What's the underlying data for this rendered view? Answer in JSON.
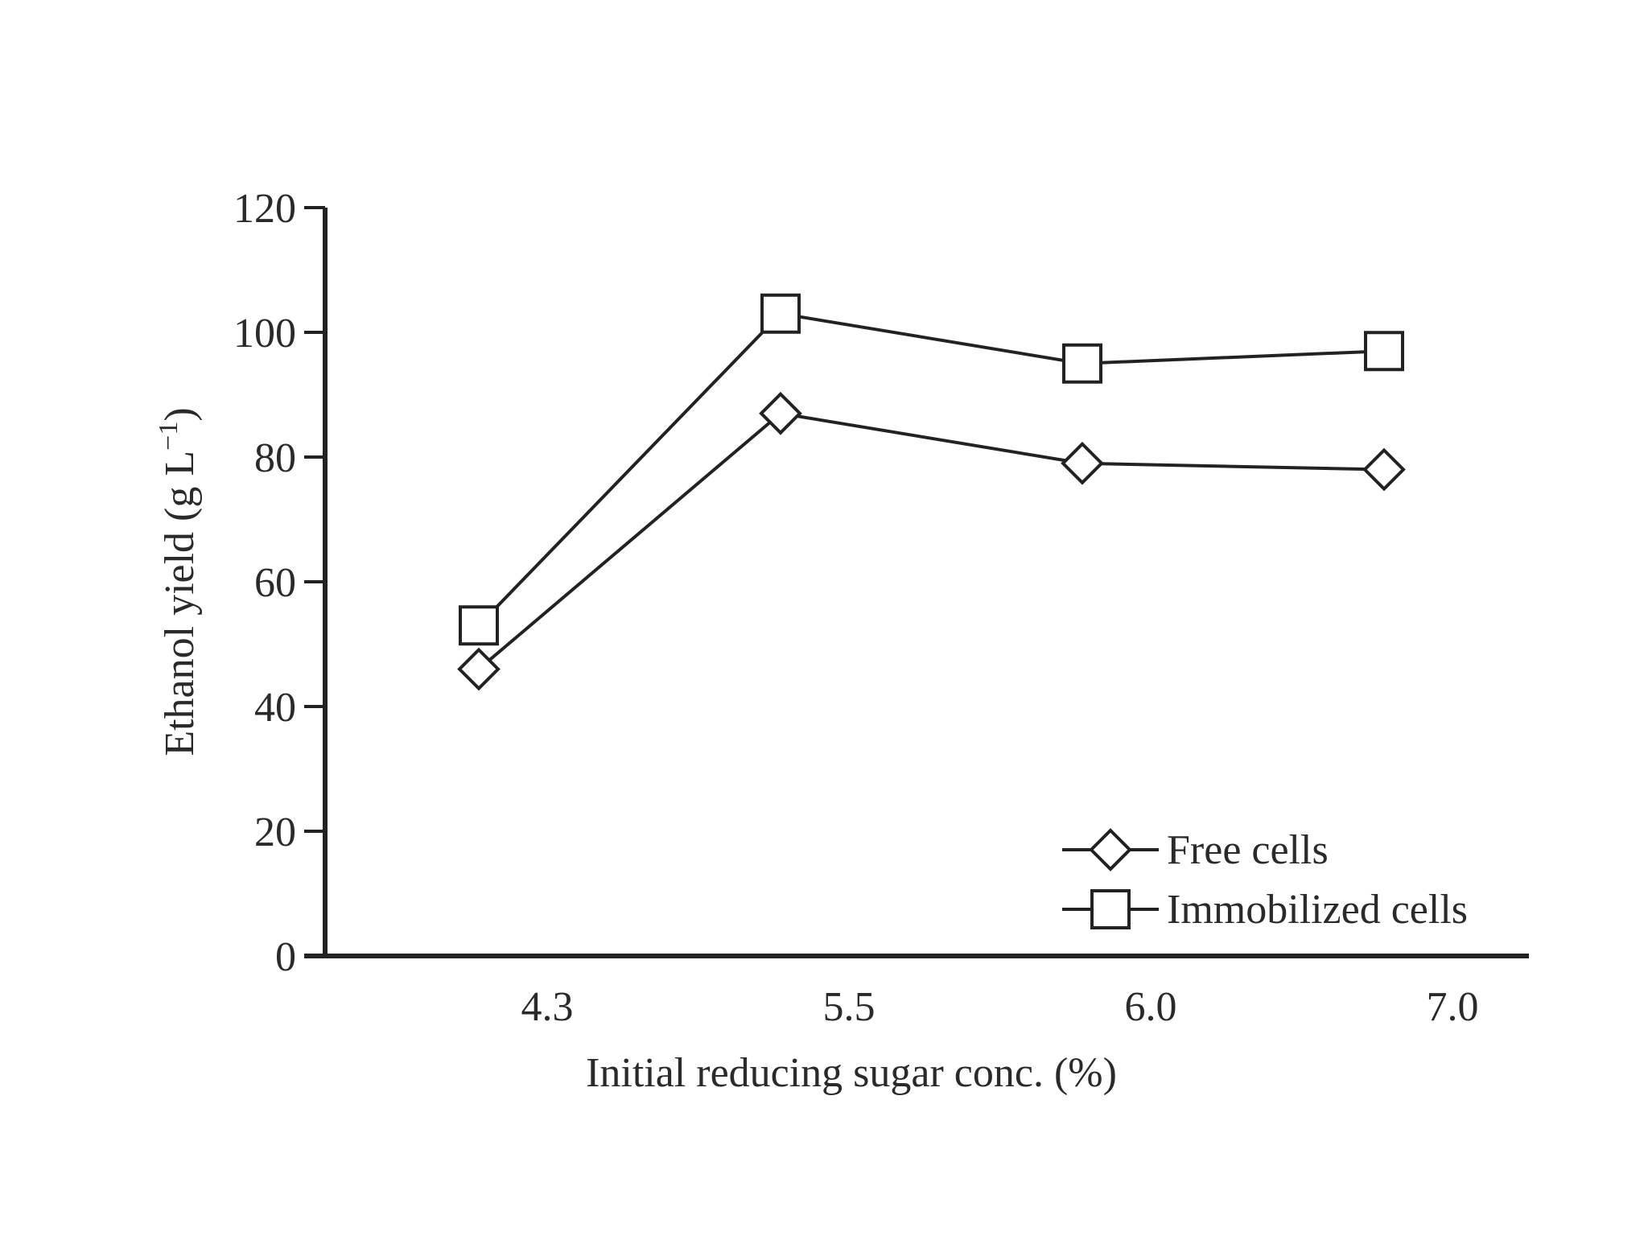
{
  "chart_data": {
    "type": "line",
    "title": "",
    "xlabel": "Initial reducing sugar conc. (%)",
    "ylabel": "Ethanol yield (g L",
    "ylabel_superscript": "−1",
    "ylabel_close": ")",
    "categories": [
      "4.3",
      "5.5",
      "6.0",
      "7.0"
    ],
    "ylim": [
      0,
      120
    ],
    "yticks": [
      0,
      20,
      40,
      60,
      80,
      100,
      120
    ],
    "grid": false,
    "legend_position": "bottom-right",
    "series": [
      {
        "name": "Free cells",
        "marker": "diamond",
        "values": [
          46,
          87,
          79,
          78
        ]
      },
      {
        "name": "Immobilized cells",
        "marker": "square",
        "values": [
          53,
          103,
          95,
          97
        ]
      }
    ],
    "colors": {
      "line": "#222222",
      "marker_fill": "#ffffff",
      "text": "#2a2a2a"
    }
  }
}
